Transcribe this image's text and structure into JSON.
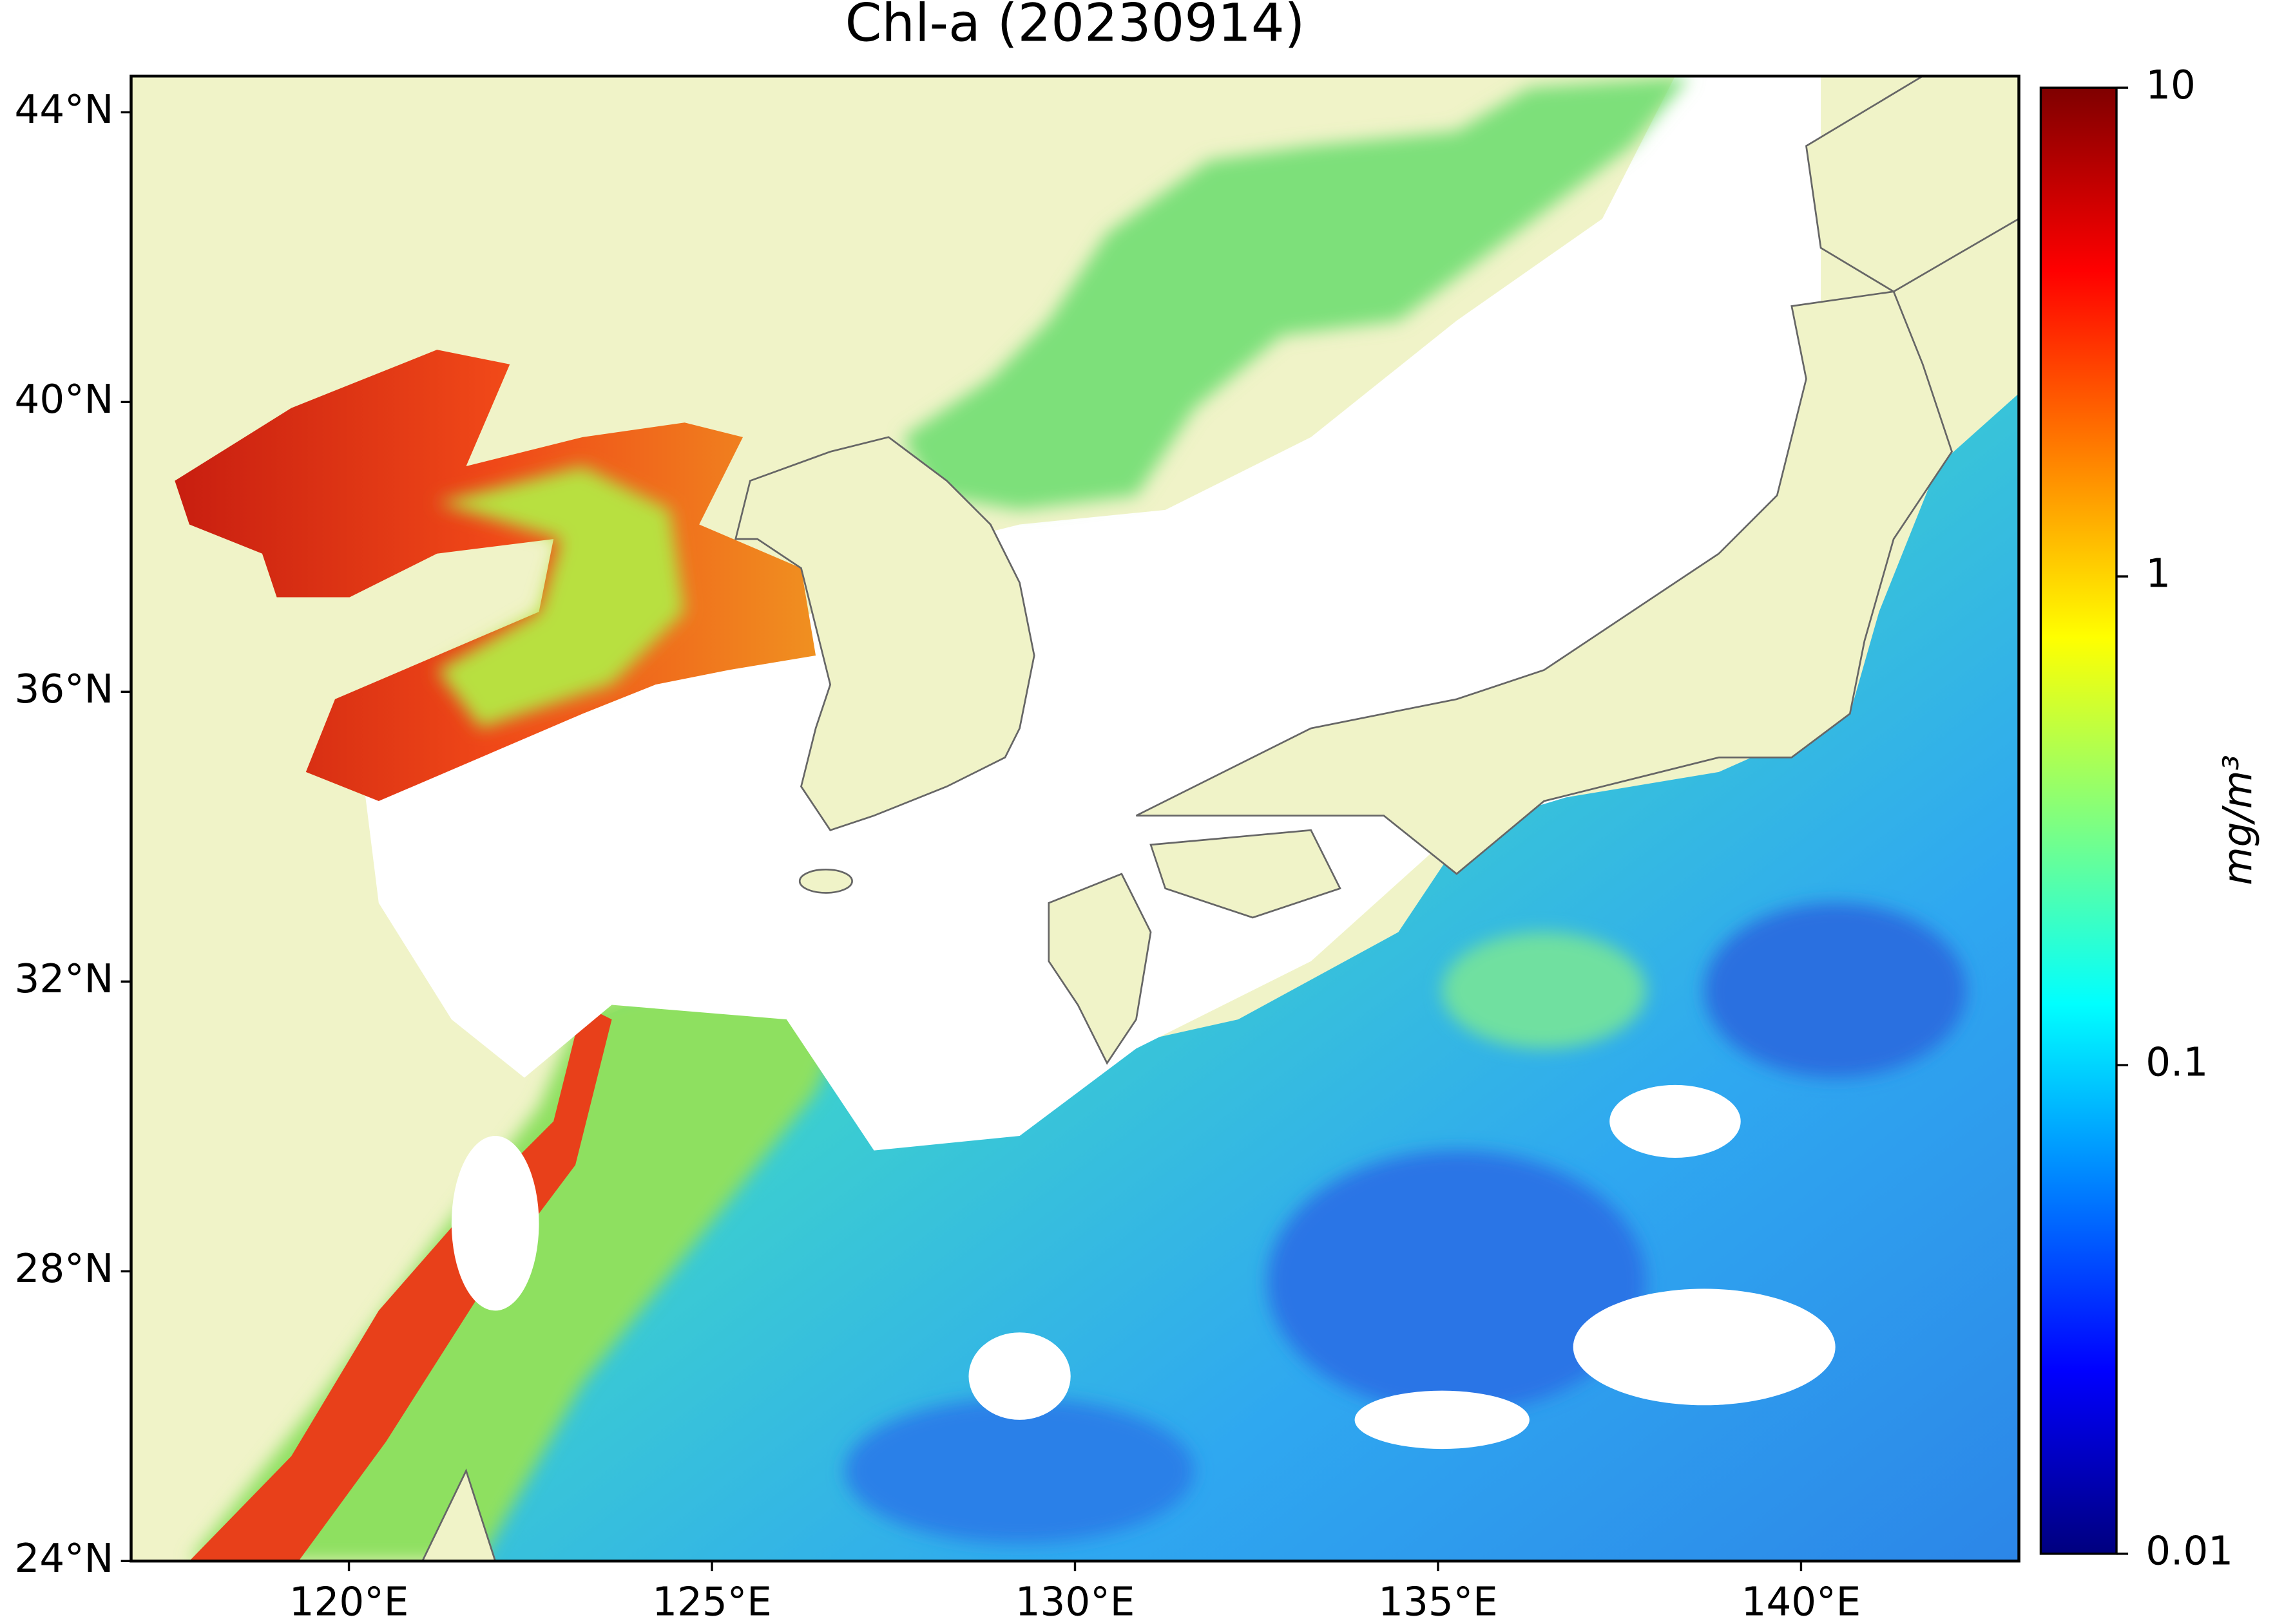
{
  "chart_data": {
    "type": "map",
    "title": "Chl-a (20230914)",
    "xlim": [
      117,
      143
    ],
    "ylim": [
      24,
      44.5
    ],
    "xticks": [
      {
        "value": 120,
        "label": "120°E"
      },
      {
        "value": 125,
        "label": "125°E"
      },
      {
        "value": 130,
        "label": "130°E"
      },
      {
        "value": 135,
        "label": "135°E"
      },
      {
        "value": 140,
        "label": "140°E"
      }
    ],
    "yticks": [
      {
        "value": 24,
        "label": "24°N"
      },
      {
        "value": 28,
        "label": "28°N"
      },
      {
        "value": 32,
        "label": "32°N"
      },
      {
        "value": 36,
        "label": "36°N"
      },
      {
        "value": 40,
        "label": "40°N"
      },
      {
        "value": 44,
        "label": "44°N"
      }
    ],
    "colorbar": {
      "label": "mg/m³",
      "scale": "log",
      "lim": [
        0.01,
        10
      ],
      "ticks": [
        0.01,
        0.1,
        1,
        10
      ],
      "colormap": "jet"
    }
  }
}
